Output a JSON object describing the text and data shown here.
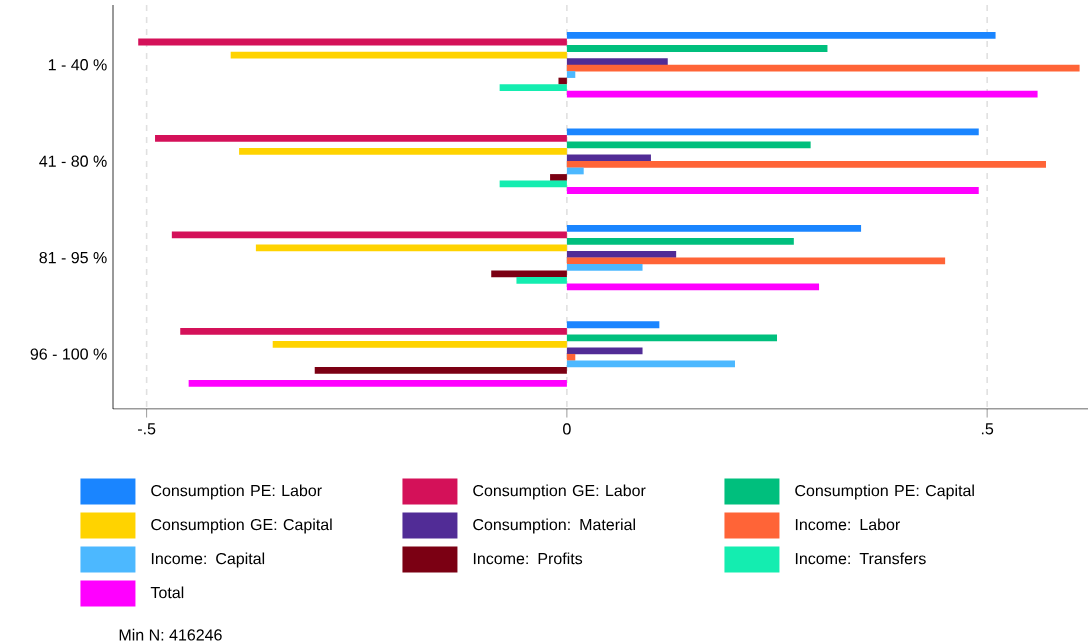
{
  "chart_data": {
    "type": "bar",
    "orientation": "horizontal",
    "categories": [
      "1 - 40 %",
      "41 - 80 %",
      "81 - 95 %",
      "96 - 100 %"
    ],
    "series": [
      {
        "name": "Consumption PE: Labor",
        "color": "#1a85ff",
        "values": [
          0.51,
          0.49,
          0.35,
          0.11
        ]
      },
      {
        "name": "Consumption GE: Labor",
        "color": "#d41159",
        "values": [
          -0.51,
          -0.49,
          -0.47,
          -0.46
        ]
      },
      {
        "name": "Consumption PE: Capital",
        "color": "#00bf7d",
        "values": [
          0.31,
          0.29,
          0.27,
          0.25
        ]
      },
      {
        "name": "Consumption GE: Capital",
        "color": "#ffd300",
        "values": [
          -0.4,
          -0.39,
          -0.37,
          -0.35
        ]
      },
      {
        "name": "Consumption: Material",
        "color": "#512c96",
        "values": [
          0.12,
          0.1,
          0.13,
          0.09
        ]
      },
      {
        "name": "Income: Labor",
        "color": "#ff6437",
        "values": [
          0.61,
          0.57,
          0.45,
          0.01
        ]
      },
      {
        "name": "Income: Capital",
        "color": "#4cb8ff",
        "values": [
          0.01,
          0.02,
          0.09,
          0.2
        ]
      },
      {
        "name": "Income: Profits",
        "color": "#7b0013",
        "values": [
          -0.01,
          -0.02,
          -0.09,
          -0.3
        ]
      },
      {
        "name": "Income: Transfers",
        "color": "#14edb0",
        "values": [
          -0.08,
          -0.08,
          -0.06,
          null
        ]
      },
      {
        "name": "Total",
        "color": "#ff00ff",
        "values": [
          0.56,
          0.49,
          0.3,
          -0.45
        ]
      }
    ],
    "xlim": [
      -0.54,
      0.62
    ],
    "xticks": [
      {
        "value": -0.5,
        "label": "-.5"
      },
      0,
      {
        "value": 0.5,
        "label": ".5"
      }
    ],
    "grid": "x",
    "legend": "bottom",
    "annotations": [
      "Min N: 416246"
    ]
  }
}
